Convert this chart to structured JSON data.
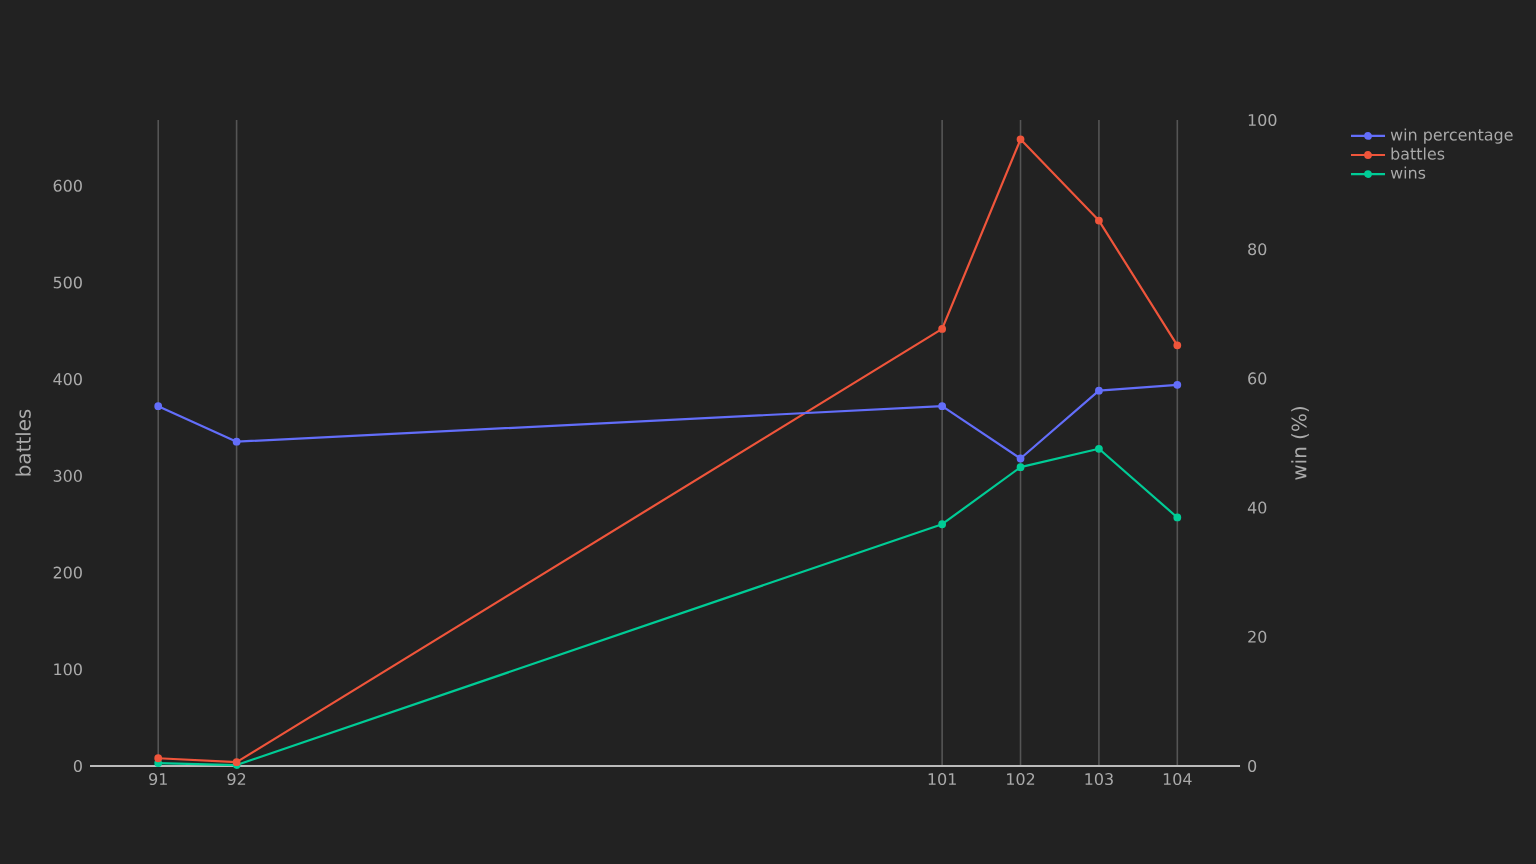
{
  "chart_data": {
    "type": "line",
    "ylabel": "battles",
    "y2label": "win (%)",
    "x": [
      91,
      92,
      101,
      102,
      103,
      104
    ],
    "xlim": [
      90.13,
      104.8
    ],
    "xticks": [
      91,
      92,
      101,
      102,
      103,
      104
    ],
    "ylim": [
      0,
      668
    ],
    "yticks": [
      0,
      100,
      200,
      300,
      400,
      500,
      600
    ],
    "y2lim": [
      0,
      100
    ],
    "y2ticks": [
      0,
      20,
      40,
      60,
      80,
      100
    ],
    "grid": "x",
    "legend": "top right",
    "marker": "circle",
    "line_style": "solid",
    "series": [
      {
        "name": "win percentage",
        "color": "#636efa",
        "axis": "y2",
        "values": [
          55.7,
          50.2,
          55.7,
          47.6,
          58.1,
          59.0
        ]
      },
      {
        "name": "battles",
        "color": "#ef553b",
        "values": [
          8,
          4,
          452,
          648,
          564,
          435
        ]
      },
      {
        "name": "wins",
        "color": "#00cc96",
        "values": [
          3,
          1,
          250,
          309,
          328,
          257
        ]
      }
    ]
  }
}
